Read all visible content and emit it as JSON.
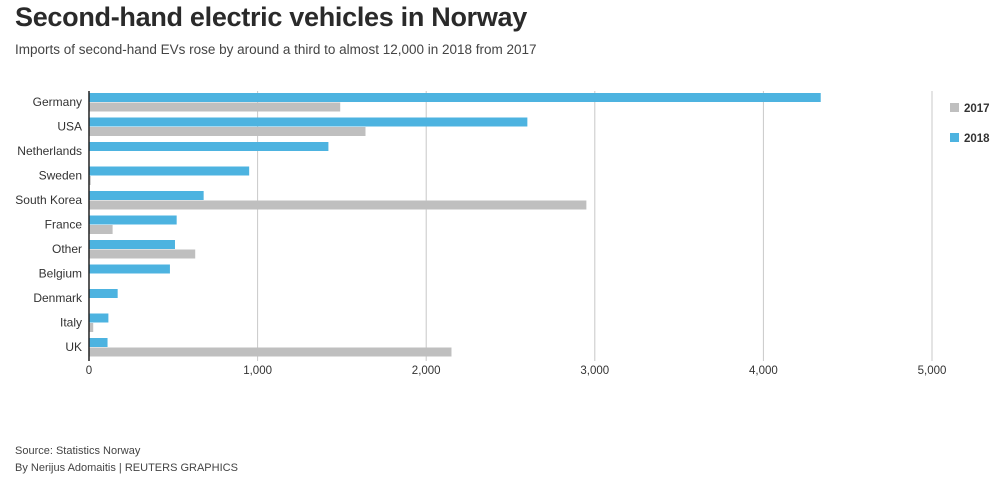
{
  "header": {
    "title": "Second-hand electric vehicles in Norway",
    "subtitle": "Imports of second-hand EVs rose by around a third to almost 12,000 in 2018 from 2017"
  },
  "footer": {
    "source": "Source: Statistics Norway",
    "credit": "By Nerijus Adomaitis   | REUTERS GRAPHICS"
  },
  "colors": {
    "2018": "#4db3e0",
    "2017": "#bfbfbf",
    "grid": "#c8c8c8",
    "axis": "#222222"
  },
  "chart_data": {
    "type": "bar",
    "orientation": "horizontal",
    "categories": [
      "Germany",
      "USA",
      "Netherlands",
      "Sweden",
      "South Korea",
      "France",
      "Other",
      "Belgium",
      "Denmark",
      "Italy",
      "UK"
    ],
    "series": [
      {
        "name": "2018",
        "values": [
          4340,
          2600,
          1420,
          950,
          680,
          520,
          510,
          480,
          170,
          115,
          110
        ]
      },
      {
        "name": "2017",
        "values": [
          1490,
          1640,
          0,
          10,
          2950,
          140,
          630,
          0,
          0,
          25,
          2150
        ]
      }
    ],
    "xlim": [
      0,
      5000
    ],
    "xticks": [
      0,
      1000,
      2000,
      3000,
      4000,
      5000
    ],
    "xtick_labels": [
      "0",
      "1,000",
      "2,000",
      "3,000",
      "4,000",
      "5,000"
    ],
    "legend": {
      "position": "right",
      "entries": [
        {
          "label": "2017",
          "series": "2017"
        },
        {
          "label": "2018",
          "series": "2018"
        }
      ]
    },
    "grid": true
  }
}
